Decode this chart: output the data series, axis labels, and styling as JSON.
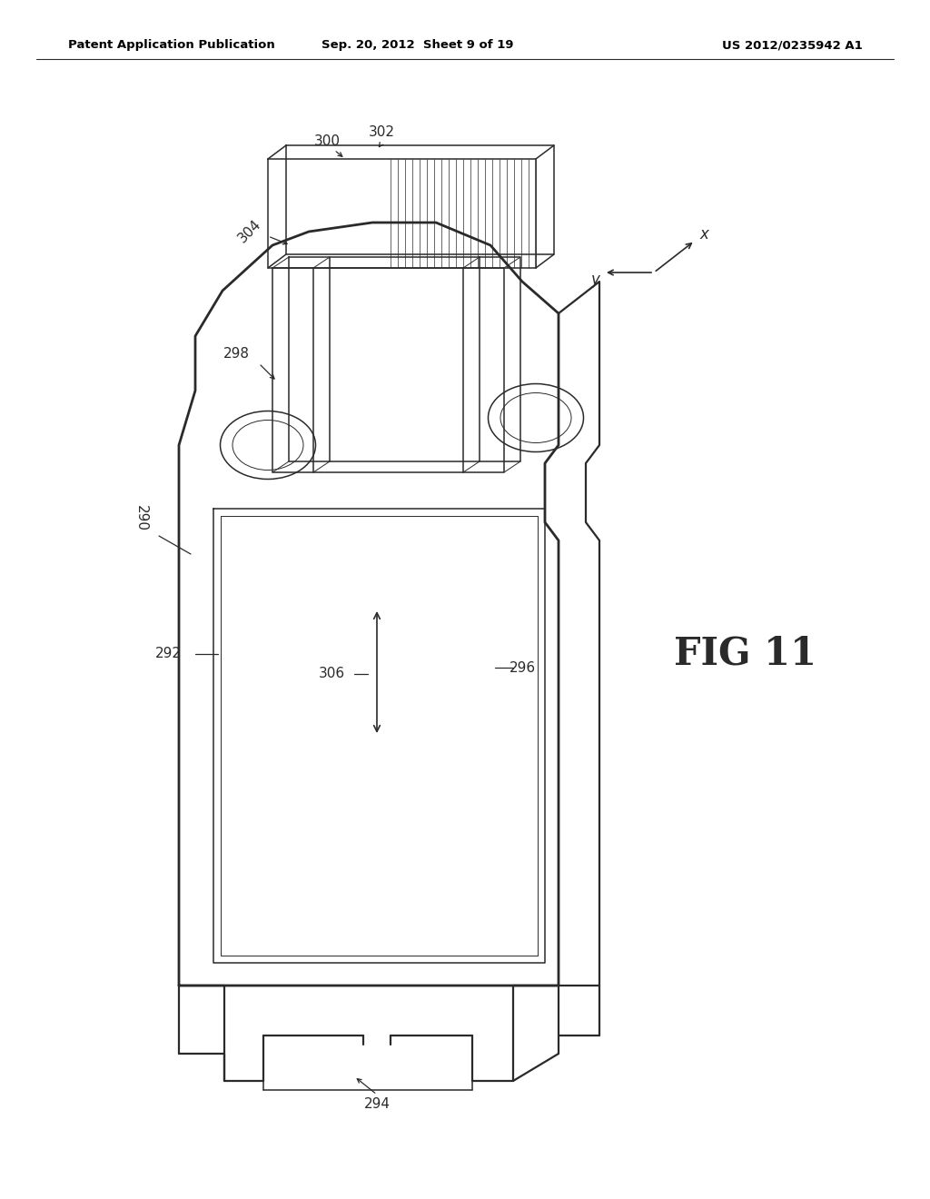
{
  "bg_color": "#ffffff",
  "header_left": "Patent Application Publication",
  "header_center": "Sep. 20, 2012  Sheet 9 of 19",
  "header_right": "US 2012/0235942 A1",
  "fig_label": "FIG 11",
  "line_color": "#2a2a2a",
  "lw_main": 1.6,
  "lw_inner": 1.1,
  "lw_thin": 0.7
}
